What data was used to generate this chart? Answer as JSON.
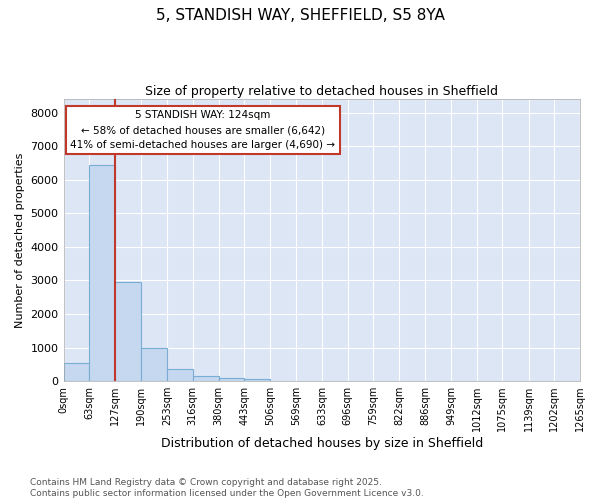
{
  "title": "5, STANDISH WAY, SHEFFIELD, S5 8YA",
  "subtitle": "Size of property relative to detached houses in Sheffield",
  "xlabel": "Distribution of detached houses by size in Sheffield",
  "ylabel": "Number of detached properties",
  "bar_color": "#c5d8f0",
  "bar_edge_color": "#7aadd4",
  "plot_bg_color": "#dce6f5",
  "fig_bg_color": "#ffffff",
  "grid_color": "#ffffff",
  "bin_edges": [
    0,
    63,
    127,
    190,
    253,
    316,
    380,
    443,
    506,
    569,
    633,
    696,
    759,
    822,
    886,
    949,
    1012,
    1075,
    1139,
    1202,
    1265
  ],
  "bar_heights": [
    550,
    6450,
    2950,
    1000,
    370,
    160,
    90,
    50,
    0,
    0,
    0,
    0,
    0,
    0,
    0,
    0,
    0,
    0,
    0,
    0
  ],
  "vline_x": 127,
  "vline_color": "#c0392b",
  "annotation_text": "5 STANDISH WAY: 124sqm\n← 58% of detached houses are smaller (6,642)\n41% of semi-detached houses are larger (4,690) →",
  "annotation_box_edgecolor": "#c0392b",
  "annotation_box_facecolor": "#ffffff",
  "ylim": [
    0,
    8400
  ],
  "yticks": [
    0,
    1000,
    2000,
    3000,
    4000,
    5000,
    6000,
    7000,
    8000
  ],
  "footnote": "Contains HM Land Registry data © Crown copyright and database right 2025.\nContains public sector information licensed under the Open Government Licence v3.0.",
  "tick_labels": [
    "0sqm",
    "63sqm",
    "127sqm",
    "190sqm",
    "253sqm",
    "316sqm",
    "380sqm",
    "443sqm",
    "506sqm",
    "569sqm",
    "633sqm",
    "696sqm",
    "759sqm",
    "822sqm",
    "886sqm",
    "949sqm",
    "1012sqm",
    "1075sqm",
    "1139sqm",
    "1202sqm",
    "1265sqm"
  ]
}
